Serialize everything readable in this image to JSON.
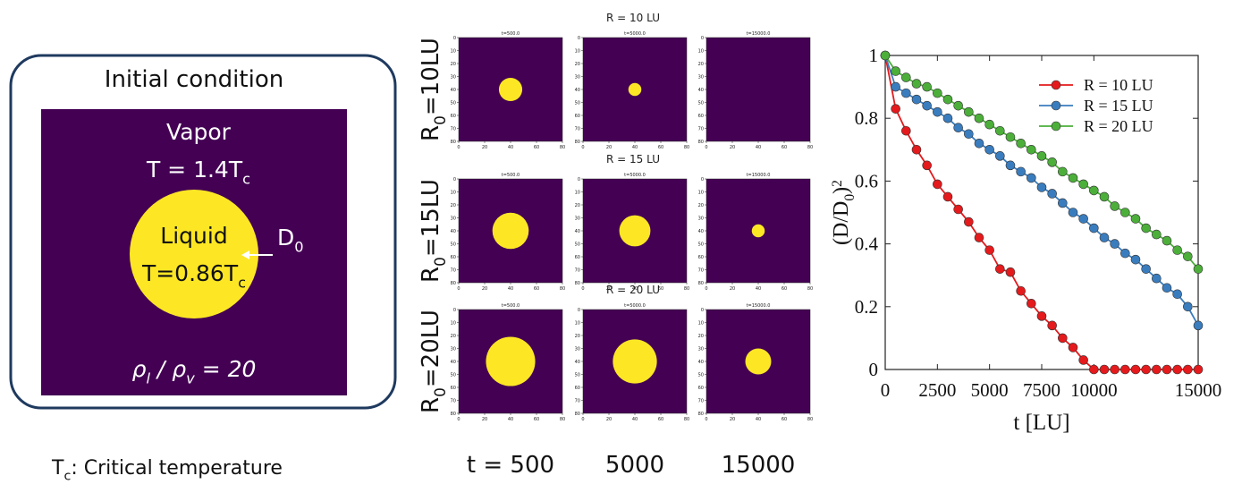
{
  "initial_condition": {
    "title": "Initial condition",
    "vapor": "Vapor",
    "vapor_temp": [
      "T = 1.4T",
      "c"
    ],
    "liquid": "Liquid",
    "liquid_temp": [
      "T=0.86T",
      "c"
    ],
    "diameter": [
      "D",
      "0"
    ],
    "density_ratio": [
      "ρ",
      "l",
      " / ρ",
      "v",
      " = 20"
    ]
  },
  "footnote": [
    "T",
    "c",
    ": Critical temperature"
  ],
  "snapshots": {
    "panel_titles": [
      "t=500.0",
      "t=5000.0",
      "t=15000.0"
    ],
    "time_labels": [
      "t = 500",
      "5000",
      "15000"
    ],
    "domain": [
      0,
      80
    ],
    "xticks": [
      0,
      20,
      40,
      60,
      80
    ],
    "yticks": [
      0,
      10,
      20,
      30,
      40,
      50,
      60,
      70,
      80
    ],
    "rows": [
      {
        "title": "R = 10 LU",
        "label": [
          "R",
          "0",
          "=10LU"
        ],
        "radii": [
          9,
          5,
          0
        ]
      },
      {
        "title": "R = 15 LU",
        "label": [
          "R",
          "0",
          "=15LU"
        ],
        "radii": [
          14,
          12,
          5
        ]
      },
      {
        "title": "R = 20 LU",
        "label": [
          "R",
          "0",
          "=20LU"
        ],
        "radii": [
          19,
          17,
          10
        ]
      }
    ]
  },
  "chart_data": {
    "type": "line",
    "y_label": [
      "(D/D",
      "0",
      ")",
      "2"
    ],
    "x_label": "t [LU]",
    "x": [
      0,
      500,
      1000,
      1500,
      2000,
      2500,
      3000,
      3500,
      4000,
      4500,
      5000,
      5500,
      6000,
      6500,
      7000,
      7500,
      8000,
      8500,
      9000,
      9500,
      10000,
      10500,
      11000,
      11500,
      12000,
      12500,
      13000,
      13500,
      14000,
      14500,
      15000
    ],
    "series": [
      {
        "name": "R = 10 LU",
        "color": "#e41a1c",
        "values": [
          1.0,
          0.83,
          0.76,
          0.7,
          0.65,
          0.59,
          0.55,
          0.51,
          0.47,
          0.42,
          0.38,
          0.32,
          0.31,
          0.25,
          0.21,
          0.17,
          0.14,
          0.1,
          0.07,
          0.03,
          0,
          0,
          0,
          0,
          0,
          0,
          0,
          0,
          0,
          0,
          0
        ]
      },
      {
        "name": "R = 15 LU",
        "color": "#3a7dbf",
        "values": [
          1.0,
          0.9,
          0.88,
          0.86,
          0.84,
          0.82,
          0.8,
          0.77,
          0.75,
          0.72,
          0.7,
          0.68,
          0.65,
          0.63,
          0.61,
          0.58,
          0.56,
          0.53,
          0.5,
          0.48,
          0.45,
          0.42,
          0.4,
          0.37,
          0.35,
          0.32,
          0.29,
          0.26,
          0.24,
          0.2,
          0.14
        ]
      },
      {
        "name": "R = 20 LU",
        "color": "#4caf3a",
        "values": [
          1.0,
          0.95,
          0.93,
          0.91,
          0.9,
          0.88,
          0.86,
          0.84,
          0.82,
          0.8,
          0.78,
          0.76,
          0.74,
          0.72,
          0.7,
          0.68,
          0.66,
          0.63,
          0.61,
          0.59,
          0.57,
          0.55,
          0.52,
          0.5,
          0.48,
          0.45,
          0.43,
          0.41,
          0.38,
          0.36,
          0.32
        ]
      }
    ],
    "xlim": [
      0,
      15000
    ],
    "ylim": [
      0,
      1
    ],
    "xticks": [
      0,
      2500,
      5000,
      7500,
      10000,
      15000
    ],
    "yticks": [
      0,
      0.2,
      0.4,
      0.6,
      0.8,
      1
    ],
    "legend": "upper right"
  }
}
